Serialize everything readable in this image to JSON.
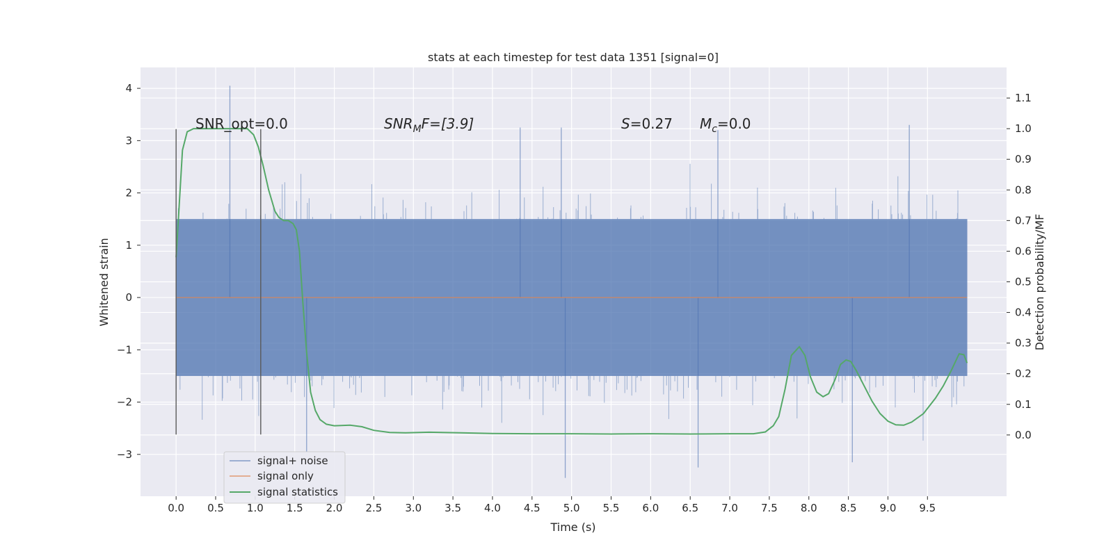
{
  "chart_data": {
    "type": "line",
    "title": "stats at each timestep for test data 1351 [signal=0]",
    "xlabel": "Time (s)",
    "ylabel_left": "Whitened strain",
    "ylabel_right": "Detection probability/MF",
    "xlim": [
      -0.45,
      10.5
    ],
    "ylim_left": [
      -3.8,
      4.4
    ],
    "ylim_right": [
      -0.2,
      1.2
    ],
    "x_ticks": [
      "0.0",
      "0.5",
      "1.0",
      "1.5",
      "2.0",
      "2.5",
      "3.0",
      "3.5",
      "4.0",
      "4.5",
      "5.0",
      "5.5",
      "6.0",
      "6.5",
      "7.0",
      "7.5",
      "8.0",
      "8.5",
      "9.0",
      "9.5"
    ],
    "y_ticks_left": [
      "−3",
      "−2",
      "−1",
      "0",
      "1",
      "2",
      "3",
      "4"
    ],
    "y_ticks_right": [
      "0.0",
      "0.1",
      "0.2",
      "0.3",
      "0.4",
      "0.5",
      "0.6",
      "0.7",
      "0.8",
      "0.9",
      "1.0",
      "1.1"
    ],
    "grid": true,
    "legend_position": "lower-left",
    "colors": {
      "background": "#eaeaf2",
      "grid": "#ffffff",
      "noise": "#4c72b0",
      "signal_only": "#dd8452",
      "statistics": "#55a868",
      "marker": "#595959"
    },
    "annotations": {
      "snr_opt": "SNR_opt=0.0",
      "snr_mf_label": "SNR",
      "snr_mf_sub": "M",
      "snr_mf_tail": "F=[3.9]",
      "s_label": "S",
      "s_value": "=0.27",
      "mc_label": "M",
      "mc_sub": "c",
      "mc_value": "=0.0"
    },
    "vertical_markers": [
      {
        "x": 0.0,
        "ymin": -2.62,
        "ymax": 3.22
      },
      {
        "x": 1.07,
        "ymin": -2.62,
        "ymax": 3.22
      }
    ],
    "series": [
      {
        "name": "signal+ noise",
        "description_range": [
          0.0,
          10.0
        ],
        "typical_band": [
          -1.5,
          1.5
        ],
        "peaks": [
          {
            "x": 0.68,
            "y": 4.05
          },
          {
            "x": 4.35,
            "y": 3.25
          },
          {
            "x": 4.87,
            "y": 3.25
          },
          {
            "x": 6.85,
            "y": 3.2
          },
          {
            "x": 9.27,
            "y": 3.3
          },
          {
            "x": 1.65,
            "y": -2.95
          },
          {
            "x": 4.92,
            "y": -3.45
          },
          {
            "x": 6.6,
            "y": -3.25
          },
          {
            "x": 8.55,
            "y": -3.15
          }
        ]
      },
      {
        "name": "signal only",
        "x": [
          0.0,
          10.0
        ],
        "y": [
          0.0,
          0.0
        ]
      },
      {
        "name": "signal statistics",
        "x": [
          0.0,
          0.08,
          0.14,
          0.22,
          0.35,
          0.5,
          0.7,
          0.9,
          0.98,
          1.04,
          1.1,
          1.17,
          1.25,
          1.3,
          1.36,
          1.42,
          1.48,
          1.52,
          1.56,
          1.6,
          1.65,
          1.7,
          1.76,
          1.82,
          1.9,
          2.0,
          2.2,
          2.35,
          2.5,
          2.7,
          2.9,
          3.2,
          3.6,
          4.0,
          4.5,
          5.0,
          5.5,
          6.0,
          6.5,
          7.0,
          7.3,
          7.45,
          7.55,
          7.62,
          7.7,
          7.78,
          7.88,
          7.95,
          8.02,
          8.1,
          8.18,
          8.25,
          8.33,
          8.4,
          8.47,
          8.53,
          8.6,
          8.7,
          8.8,
          8.9,
          9.0,
          9.1,
          9.2,
          9.3,
          9.45,
          9.6,
          9.7,
          9.8,
          9.9,
          9.96,
          10.0
        ],
        "y": [
          0.58,
          0.93,
          0.99,
          1.0,
          1.0,
          1.0,
          1.0,
          1.0,
          0.98,
          0.94,
          0.88,
          0.8,
          0.73,
          0.71,
          0.7,
          0.7,
          0.69,
          0.67,
          0.6,
          0.44,
          0.27,
          0.14,
          0.08,
          0.05,
          0.035,
          0.03,
          0.032,
          0.027,
          0.015,
          0.008,
          0.007,
          0.009,
          0.007,
          0.005,
          0.004,
          0.004,
          0.003,
          0.004,
          0.003,
          0.004,
          0.004,
          0.01,
          0.03,
          0.06,
          0.15,
          0.26,
          0.288,
          0.26,
          0.19,
          0.14,
          0.125,
          0.135,
          0.18,
          0.23,
          0.245,
          0.24,
          0.21,
          0.16,
          0.11,
          0.07,
          0.045,
          0.033,
          0.032,
          0.042,
          0.07,
          0.12,
          0.16,
          0.21,
          0.265,
          0.262,
          0.235
        ]
      }
    ]
  }
}
